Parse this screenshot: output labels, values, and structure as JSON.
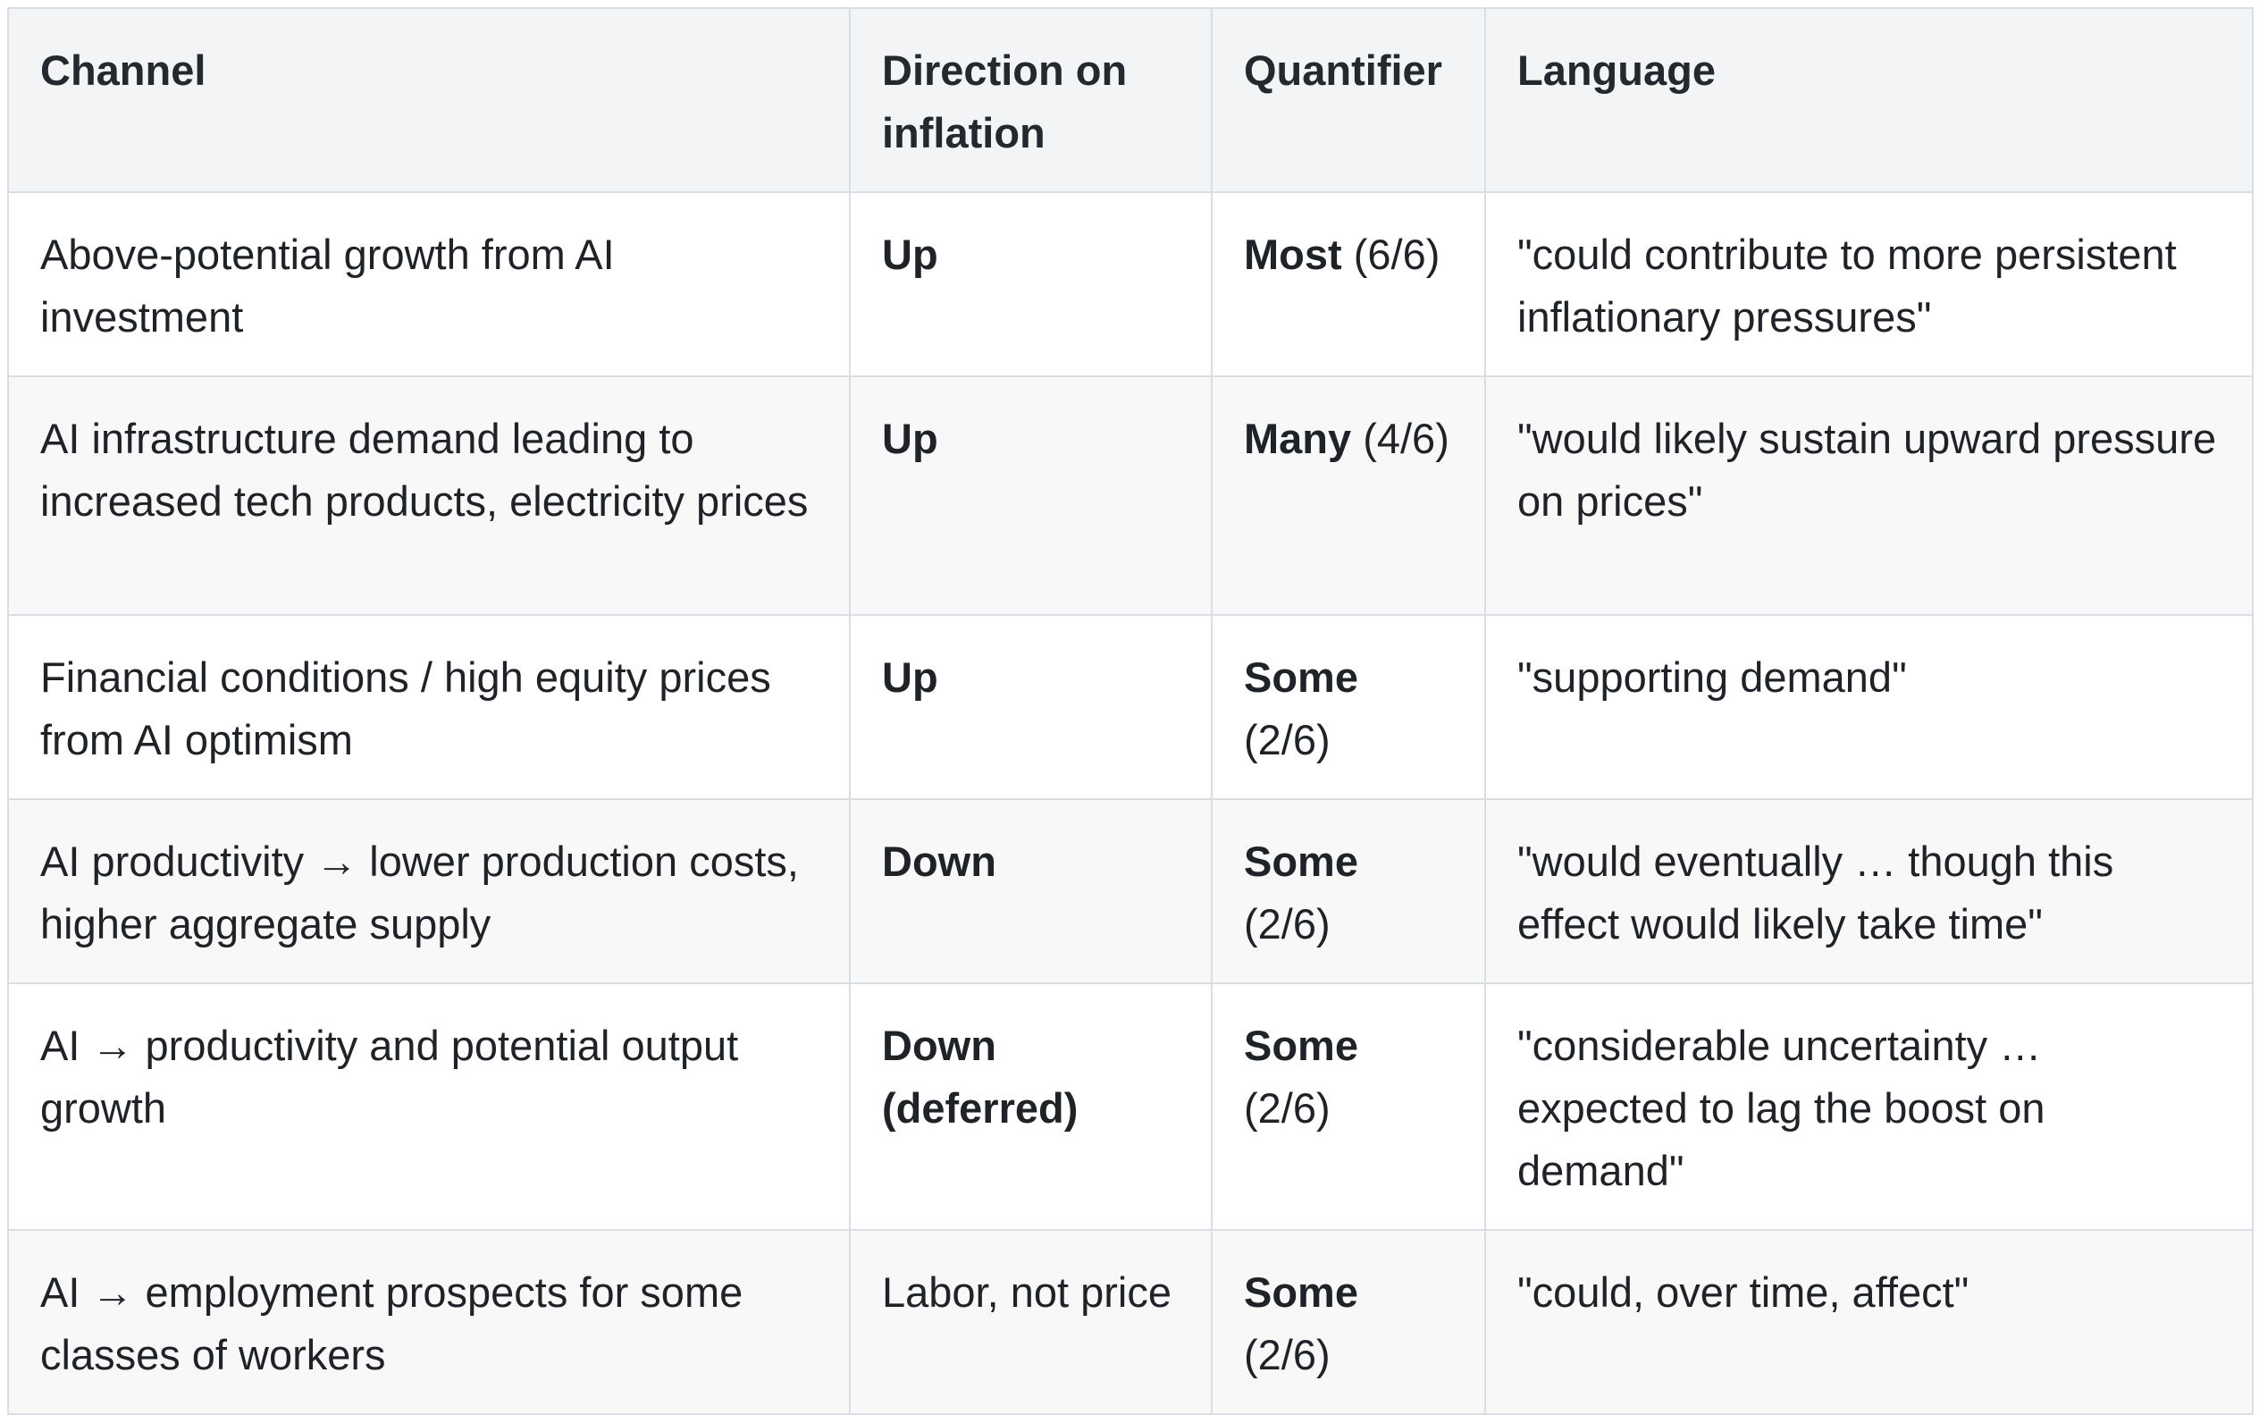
{
  "table": {
    "headers": [
      "Channel",
      "Direction on inflation",
      "Quantifier",
      "Language"
    ],
    "rows": [
      {
        "channel": "Above-potential growth from AI investment",
        "direction": "Up",
        "direction_bold": true,
        "quantifier": "Most",
        "quantifier_count": "(6/6)",
        "language": "\"could contribute to more persistent inflationary pressures\""
      },
      {
        "channel": "AI infrastructure demand leading to increased tech products, electricity prices",
        "direction": "Up",
        "direction_bold": true,
        "quantifier": "Many",
        "quantifier_count": "(4/6)",
        "language": "\"would likely sustain upward pressure on prices\""
      },
      {
        "channel": "Financial conditions / high equity prices from AI optimism",
        "direction": "Up",
        "direction_bold": true,
        "quantifier": "Some",
        "quantifier_count": "(2/6)",
        "language": "\"supporting demand\""
      },
      {
        "channel": "AI productivity → lower production costs, higher aggregate supply",
        "direction": "Down",
        "direction_bold": true,
        "quantifier": "Some",
        "quantifier_count": "(2/6)",
        "language": "\"would eventually … though this effect would likely take time\""
      },
      {
        "channel": "AI → productivity and potential output growth",
        "direction": "Down (deferred)",
        "direction_bold": true,
        "quantifier": "Some",
        "quantifier_count": "(2/6)",
        "language": "\"considerable uncertainty … expected to lag the boost on demand\""
      },
      {
        "channel": "AI → employment prospects for some classes of workers",
        "direction": "Labor, not price",
        "direction_bold": false,
        "quantifier": "Some",
        "quantifier_count": "(2/6)",
        "language": "\"could, over time, affect\""
      }
    ]
  }
}
